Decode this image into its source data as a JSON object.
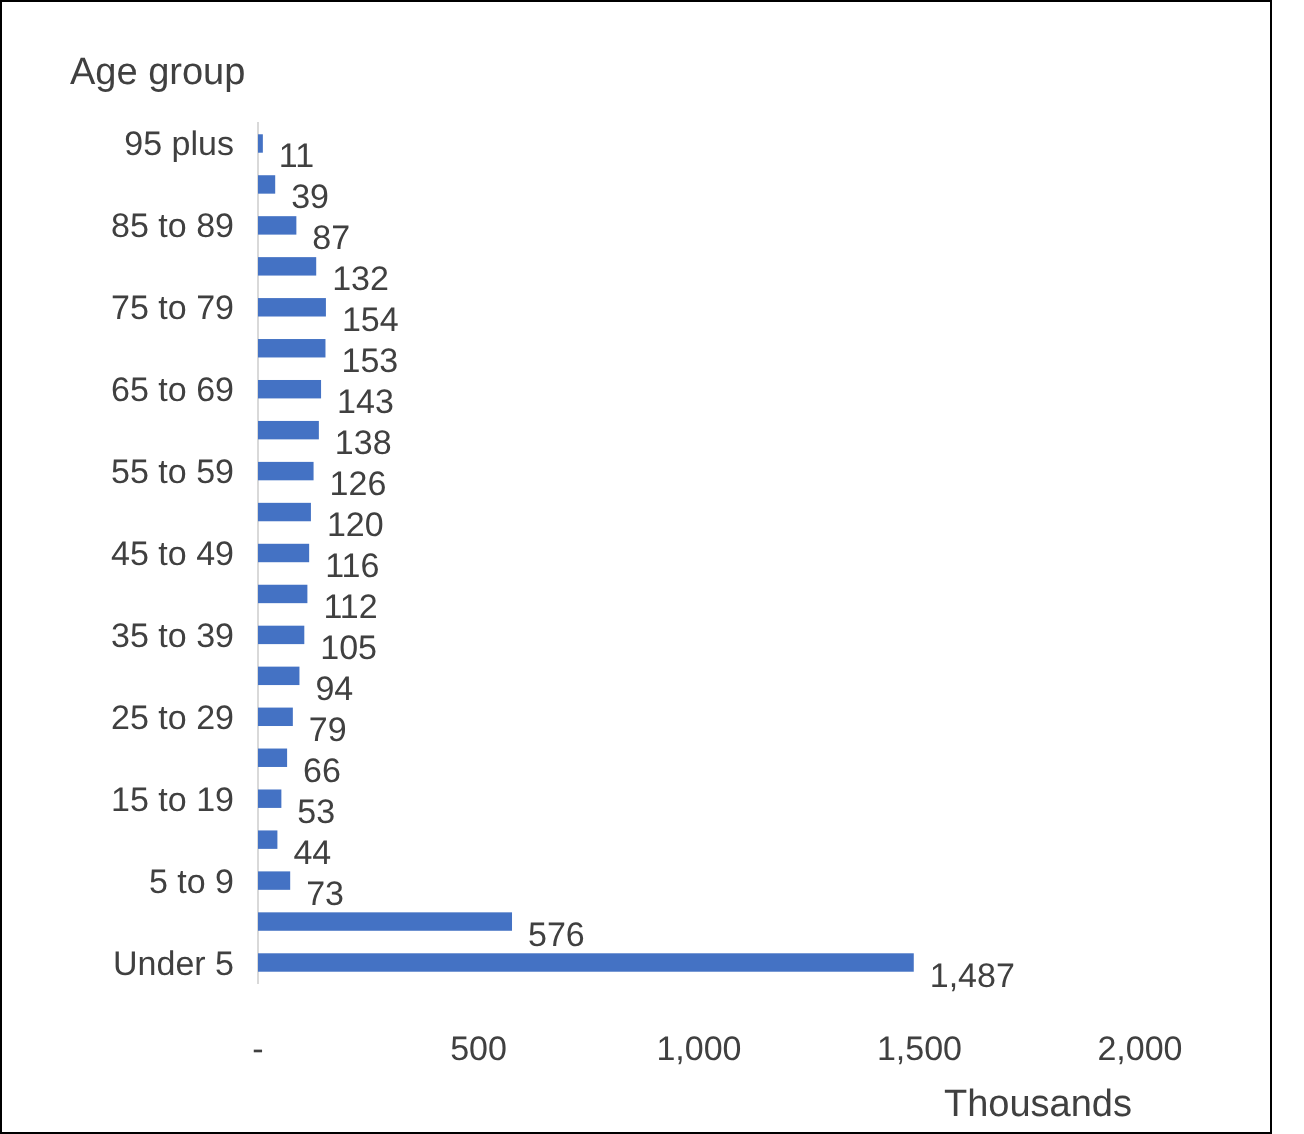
{
  "chart_data": {
    "type": "bar",
    "orientation": "horizontal",
    "ylabel": "Age group",
    "xlabel": "Thousands",
    "categories": [
      "95 plus",
      null,
      "85 to 89",
      null,
      "75 to 79",
      null,
      "65 to 69",
      null,
      "55 to 59",
      null,
      "45 to 49",
      null,
      "35 to 39",
      null,
      "25 to 29",
      null,
      "15 to 19",
      null,
      "5 to 9",
      null,
      "Under 5"
    ],
    "values": [
      11,
      39,
      87,
      132,
      154,
      153,
      143,
      138,
      126,
      120,
      116,
      112,
      105,
      94,
      79,
      66,
      53,
      44,
      73,
      576,
      1487
    ],
    "value_labels": [
      "11",
      "39",
      "87",
      "132",
      "154",
      "153",
      "143",
      "138",
      "126",
      "120",
      "116",
      "112",
      "105",
      "94",
      "79",
      "66",
      "53",
      "44",
      "73",
      "576",
      "1,487"
    ],
    "color": "#4472c4",
    "xlim": [
      0,
      2000
    ],
    "xticks": [
      {
        "value": 0,
        "label": "-"
      },
      500,
      {
        "value": 1000,
        "label": "1,000"
      },
      {
        "value": 1500,
        "label": "1,500"
      },
      {
        "value": 2000,
        "label": "2,000"
      }
    ],
    "grid": false
  }
}
